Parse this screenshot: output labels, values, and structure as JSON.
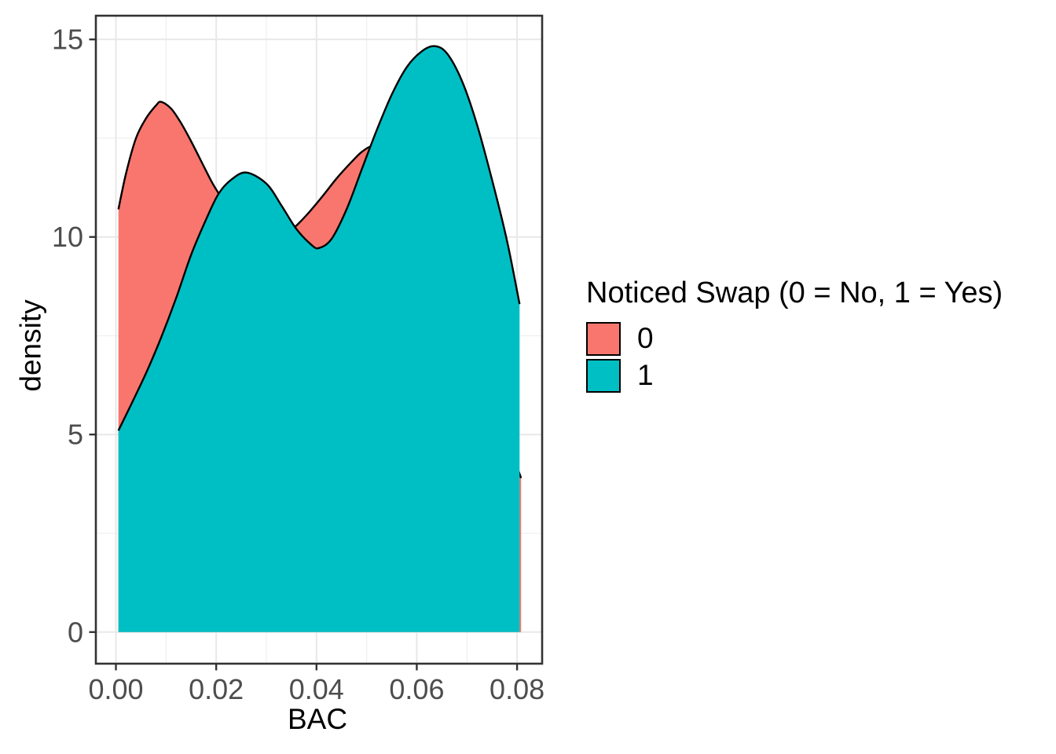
{
  "figure": {
    "background": "#FFFFFF"
  },
  "colors": {
    "group0_fill": "#F8766D",
    "group1_fill": "#00BFC4",
    "curve_outline": "#000000",
    "panel_border": "#333333",
    "grid_major": "#E8E8E8",
    "grid_minor": "#F0F0F0",
    "tick_mark": "#333333",
    "tick_text": "#4D4D4D",
    "axis_title_text": "#000000"
  },
  "chart_data": {
    "type": "area",
    "subtype": "overlapping-density",
    "title": "",
    "xlabel": "BAC",
    "ylabel": "density",
    "xlim": [
      -0.004,
      0.085
    ],
    "ylim": [
      -0.8,
      15.6
    ],
    "grid": true,
    "legend_position": "right",
    "x_major_ticks": [
      0.0,
      0.02,
      0.04,
      0.06,
      0.08
    ],
    "x_tick_labels": [
      "0.00",
      "0.02",
      "0.04",
      "0.06",
      "0.08"
    ],
    "x_minor_ticks": [
      0.01,
      0.03,
      0.05,
      0.07
    ],
    "y_major_ticks": [
      0,
      5,
      10,
      15
    ],
    "y_tick_labels": [
      "0",
      "5",
      "10",
      "15"
    ],
    "y_minor_ticks": [
      2.5,
      7.5,
      12.5
    ],
    "legend": {
      "title": "Noticed Swap (0 = No, 1 = Yes)",
      "entries": [
        {
          "label": "0",
          "color": "#F8766D"
        },
        {
          "label": "1",
          "color": "#00BFC4"
        }
      ]
    },
    "series": [
      {
        "name": "0",
        "color": "#F8766D",
        "outline": "#000000",
        "points": [
          [
            0.0005,
            10.7
          ],
          [
            0.002,
            11.6
          ],
          [
            0.004,
            12.5
          ],
          [
            0.006,
            13.0
          ],
          [
            0.008,
            13.33
          ],
          [
            0.009,
            13.42
          ],
          [
            0.011,
            13.25
          ],
          [
            0.013,
            12.88
          ],
          [
            0.015,
            12.42
          ],
          [
            0.017,
            11.92
          ],
          [
            0.019,
            11.42
          ],
          [
            0.0205,
            11.1
          ],
          [
            0.023,
            10.62
          ],
          [
            0.026,
            10.22
          ],
          [
            0.029,
            10.02
          ],
          [
            0.032,
            10.0
          ],
          [
            0.035,
            10.18
          ],
          [
            0.038,
            10.55
          ],
          [
            0.041,
            11.0
          ],
          [
            0.044,
            11.48
          ],
          [
            0.047,
            11.9
          ],
          [
            0.049,
            12.15
          ],
          [
            0.051,
            12.3
          ],
          [
            0.053,
            12.26
          ],
          [
            0.056,
            11.95
          ],
          [
            0.06,
            11.1
          ],
          [
            0.064,
            10.0
          ],
          [
            0.068,
            8.7
          ],
          [
            0.072,
            7.2
          ],
          [
            0.076,
            5.6
          ],
          [
            0.0808,
            3.9
          ]
        ]
      },
      {
        "name": "1",
        "color": "#00BFC4",
        "outline": "#000000",
        "points": [
          [
            0.0005,
            5.1
          ],
          [
            0.003,
            5.75
          ],
          [
            0.006,
            6.55
          ],
          [
            0.009,
            7.45
          ],
          [
            0.012,
            8.45
          ],
          [
            0.015,
            9.55
          ],
          [
            0.018,
            10.45
          ],
          [
            0.0205,
            11.1
          ],
          [
            0.023,
            11.45
          ],
          [
            0.026,
            11.63
          ],
          [
            0.03,
            11.35
          ],
          [
            0.033,
            10.8
          ],
          [
            0.036,
            10.2
          ],
          [
            0.039,
            9.8
          ],
          [
            0.0405,
            9.72
          ],
          [
            0.043,
            9.95
          ],
          [
            0.046,
            10.7
          ],
          [
            0.049,
            11.7
          ],
          [
            0.052,
            12.7
          ],
          [
            0.055,
            13.6
          ],
          [
            0.058,
            14.3
          ],
          [
            0.061,
            14.7
          ],
          [
            0.0635,
            14.83
          ],
          [
            0.066,
            14.65
          ],
          [
            0.069,
            13.95
          ],
          [
            0.072,
            12.85
          ],
          [
            0.075,
            11.45
          ],
          [
            0.078,
            9.9
          ],
          [
            0.0805,
            8.3
          ]
        ]
      }
    ]
  }
}
